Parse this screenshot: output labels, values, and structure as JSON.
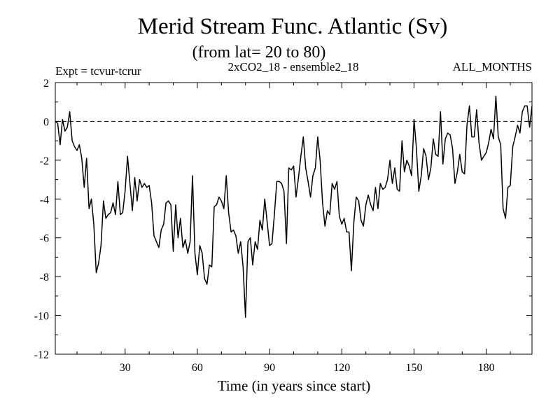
{
  "chart_data": {
    "type": "line",
    "title": "Merid Stream Func. Atlantic (Sv)",
    "subtitle": "(from lat= 20 to 80)",
    "annotation_left": "Expt = tcvur-tcrur",
    "annotation_center": "2xCO2_18 - ensemble2_18",
    "annotation_right": "ALL_MONTHS",
    "xlabel": "Time (in years since start)",
    "ylabel": "",
    "xlim": [
      1,
      199
    ],
    "ylim": [
      -12,
      2
    ],
    "xticks": [
      30,
      60,
      90,
      120,
      150,
      180
    ],
    "yticks": [
      2,
      0,
      -2,
      -4,
      -6,
      -8,
      -10,
      -12
    ],
    "zero_line": "dashed",
    "grid": false,
    "series": [
      {
        "values": [
          [
            1,
            0.0
          ],
          [
            2,
            -0.1
          ],
          [
            3,
            -1.2
          ],
          [
            4,
            0.1
          ],
          [
            5,
            -0.5
          ],
          [
            6,
            -0.3
          ],
          [
            7,
            0.5
          ],
          [
            8,
            -1.0
          ],
          [
            9,
            -1.3
          ],
          [
            10,
            -1.5
          ],
          [
            11,
            -1.2
          ],
          [
            12,
            -1.9
          ],
          [
            13,
            -3.4
          ],
          [
            14,
            -1.9
          ],
          [
            15,
            -4.5
          ],
          [
            16,
            -4.0
          ],
          [
            17,
            -5.3
          ],
          [
            18,
            -7.8
          ],
          [
            19,
            -7.3
          ],
          [
            20,
            -6.4
          ],
          [
            21,
            -4.1
          ],
          [
            22,
            -5.0
          ],
          [
            23,
            -4.8
          ],
          [
            24,
            -4.7
          ],
          [
            25,
            -4.2
          ],
          [
            26,
            -4.8
          ],
          [
            27,
            -3.1
          ],
          [
            28,
            -4.8
          ],
          [
            29,
            -4.7
          ],
          [
            30,
            -3.6
          ],
          [
            31,
            -1.8
          ],
          [
            32,
            -3.2
          ],
          [
            33,
            -4.6
          ],
          [
            34,
            -2.9
          ],
          [
            35,
            -4.1
          ],
          [
            36,
            -3.0
          ],
          [
            37,
            -3.4
          ],
          [
            38,
            -3.2
          ],
          [
            39,
            -3.4
          ],
          [
            40,
            -3.3
          ],
          [
            41,
            -4.2
          ],
          [
            42,
            -5.9
          ],
          [
            43,
            -6.2
          ],
          [
            44,
            -6.5
          ],
          [
            45,
            -5.6
          ],
          [
            46,
            -5.3
          ],
          [
            47,
            -4.2
          ],
          [
            48,
            -4.1
          ],
          [
            49,
            -4.3
          ],
          [
            50,
            -6.7
          ],
          [
            51,
            -4.3
          ],
          [
            52,
            -6.0
          ],
          [
            53,
            -5.0
          ],
          [
            54,
            -6.5
          ],
          [
            55,
            -6.1
          ],
          [
            56,
            -6.8
          ],
          [
            57,
            -6.2
          ],
          [
            58,
            -2.8
          ],
          [
            59,
            -6.8
          ],
          [
            60,
            -7.9
          ],
          [
            61,
            -6.4
          ],
          [
            62,
            -6.8
          ],
          [
            63,
            -8.1
          ],
          [
            64,
            -8.4
          ],
          [
            65,
            -7.4
          ],
          [
            66,
            -7.5
          ],
          [
            67,
            -4.4
          ],
          [
            68,
            -4.3
          ],
          [
            69,
            -3.9
          ],
          [
            70,
            -4.1
          ],
          [
            71,
            -4.5
          ],
          [
            72,
            -2.8
          ],
          [
            73,
            -4.7
          ],
          [
            74,
            -5.7
          ],
          [
            75,
            -5.6
          ],
          [
            76,
            -5.9
          ],
          [
            77,
            -6.8
          ],
          [
            78,
            -6.2
          ],
          [
            79,
            -7.5
          ],
          [
            80,
            -10.1
          ],
          [
            81,
            -6.2
          ],
          [
            82,
            -6.0
          ],
          [
            83,
            -7.4
          ],
          [
            84,
            -6.2
          ],
          [
            85,
            -6.6
          ],
          [
            86,
            -5.1
          ],
          [
            87,
            -5.6
          ],
          [
            88,
            -4.0
          ],
          [
            89,
            -5.2
          ],
          [
            90,
            -6.4
          ],
          [
            91,
            -6.3
          ],
          [
            92,
            -4.8
          ],
          [
            93,
            -3.1
          ],
          [
            94,
            -3.1
          ],
          [
            95,
            -3.2
          ],
          [
            96,
            -3.6
          ],
          [
            97,
            -6.3
          ],
          [
            98,
            -2.4
          ],
          [
            99,
            -2.5
          ],
          [
            100,
            -2.3
          ],
          [
            101,
            -3.9
          ],
          [
            102,
            -2.9
          ],
          [
            103,
            -1.8
          ],
          [
            104,
            -0.8
          ],
          [
            105,
            -2.4
          ],
          [
            106,
            -3.1
          ],
          [
            107,
            -3.9
          ],
          [
            108,
            -2.8
          ],
          [
            109,
            -2.4
          ],
          [
            110,
            -0.8
          ],
          [
            111,
            -2.0
          ],
          [
            112,
            -4.2
          ],
          [
            113,
            -5.4
          ],
          [
            114,
            -4.6
          ],
          [
            115,
            -4.8
          ],
          [
            116,
            -3.2
          ],
          [
            117,
            -3.5
          ],
          [
            118,
            -3.1
          ],
          [
            119,
            -4.9
          ],
          [
            120,
            -5.3
          ],
          [
            121,
            -5.0
          ],
          [
            122,
            -5.7
          ],
          [
            123,
            -5.7
          ],
          [
            124,
            -7.7
          ],
          [
            125,
            -5.2
          ],
          [
            126,
            -3.9
          ],
          [
            127,
            -4.1
          ],
          [
            128,
            -5.1
          ],
          [
            129,
            -5.4
          ],
          [
            130,
            -4.3
          ],
          [
            131,
            -3.8
          ],
          [
            132,
            -4.3
          ],
          [
            133,
            -4.6
          ],
          [
            134,
            -3.4
          ],
          [
            135,
            -4.5
          ],
          [
            136,
            -3.2
          ],
          [
            137,
            -3.5
          ],
          [
            138,
            -3.4
          ],
          [
            139,
            -3.0
          ],
          [
            140,
            -2.0
          ],
          [
            141,
            -3.2
          ],
          [
            142,
            -2.4
          ],
          [
            143,
            -3.5
          ],
          [
            144,
            -3.6
          ],
          [
            145,
            -1.0
          ],
          [
            146,
            -2.6
          ],
          [
            147,
            -2.0
          ],
          [
            148,
            -2.3
          ],
          [
            149,
            -2.8
          ],
          [
            150,
            0.1
          ],
          [
            151,
            -1.4
          ],
          [
            152,
            -3.6
          ],
          [
            153,
            -2.8
          ],
          [
            154,
            -1.4
          ],
          [
            155,
            -1.8
          ],
          [
            156,
            -3.0
          ],
          [
            157,
            -2.4
          ],
          [
            158,
            -0.9
          ],
          [
            159,
            -1.7
          ],
          [
            160,
            -1.8
          ],
          [
            161,
            0.5
          ],
          [
            162,
            -2.2
          ],
          [
            163,
            -0.9
          ],
          [
            164,
            -0.6
          ],
          [
            165,
            -0.7
          ],
          [
            166,
            -1.4
          ],
          [
            167,
            -3.2
          ],
          [
            168,
            -2.6
          ],
          [
            169,
            -1.7
          ],
          [
            170,
            -2.6
          ],
          [
            171,
            -2.7
          ],
          [
            172,
            -0.2
          ],
          [
            173,
            0.8
          ],
          [
            174,
            -0.8
          ],
          [
            175,
            -0.8
          ],
          [
            176,
            0.6
          ],
          [
            177,
            -1.1
          ],
          [
            178,
            -2.0
          ],
          [
            179,
            -1.8
          ],
          [
            180,
            -1.6
          ],
          [
            181,
            -1.1
          ],
          [
            182,
            -0.4
          ],
          [
            183,
            -0.9
          ],
          [
            184,
            1.3
          ],
          [
            185,
            -0.8
          ],
          [
            186,
            -1.2
          ],
          [
            187,
            -4.5
          ],
          [
            188,
            -5.0
          ],
          [
            189,
            -3.4
          ],
          [
            190,
            -3.3
          ],
          [
            191,
            -1.3
          ],
          [
            192,
            -0.8
          ],
          [
            193,
            -0.2
          ],
          [
            194,
            -0.6
          ],
          [
            195,
            0.5
          ],
          [
            196,
            0.8
          ],
          [
            197,
            0.8
          ],
          [
            198,
            -0.3
          ],
          [
            199,
            0.8
          ]
        ]
      }
    ]
  }
}
